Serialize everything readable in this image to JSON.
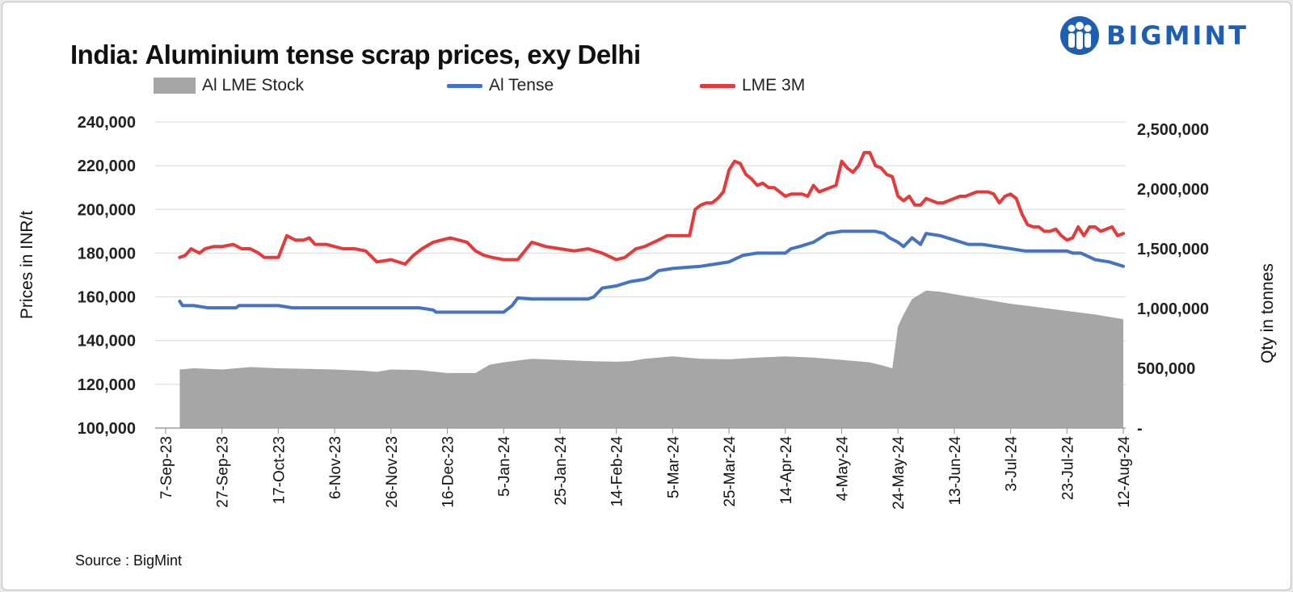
{
  "brand": {
    "name": "BIGMINT",
    "color": "#1e5fb4",
    "icon": "people-logo-icon"
  },
  "source": "Source : BigMint",
  "chart_data": {
    "type": "line",
    "title": "India: Aluminium tense scrap prices, exy Delhi",
    "ylabel": "Prices in INR/t",
    "y2label": "Qty in tonnes",
    "ylim": [
      100000,
      240000
    ],
    "y2lim": [
      0,
      2500000
    ],
    "yticks": [
      "240,000",
      "220,000",
      "200,000",
      "180,000",
      "160,000",
      "140,000",
      "120,000",
      "100,000"
    ],
    "y2ticks": [
      "2,500,000",
      "2,000,000",
      "1,500,000",
      "1,000,000",
      "500,000",
      "-"
    ],
    "categories": [
      "7-Sep-23",
      "27-Sep-23",
      "17-Oct-23",
      "6-Nov-23",
      "26-Nov-23",
      "16-Dec-23",
      "5-Jan-24",
      "25-Jan-24",
      "14-Feb-24",
      "5-Mar-24",
      "25-Mar-24",
      "14-Apr-24",
      "4-May-24",
      "24-May-24",
      "13-Jun-24",
      "3-Jul-24",
      "23-Jul-24",
      "12-Aug-24"
    ],
    "x_range_days": [
      0,
      340
    ],
    "grid": "horizontal",
    "legend_position": "top",
    "series": [
      {
        "name": "Al LME Stock",
        "type": "area",
        "axis": "right",
        "color": "#a6a6a6",
        "x": [
          5,
          10,
          20,
          30,
          40,
          50,
          60,
          70,
          75,
          80,
          90,
          100,
          110,
          115,
          120,
          130,
          140,
          150,
          160,
          165,
          170,
          180,
          190,
          200,
          210,
          220,
          230,
          240,
          250,
          255,
          258,
          260,
          262,
          265,
          270,
          275,
          280,
          290,
          300,
          310,
          320,
          330,
          340
        ],
        "values": [
          490000,
          500000,
          490000,
          510000,
          500000,
          495000,
          490000,
          480000,
          470000,
          490000,
          485000,
          460000,
          460000,
          530000,
          550000,
          580000,
          570000,
          560000,
          555000,
          560000,
          580000,
          600000,
          580000,
          575000,
          590000,
          600000,
          590000,
          570000,
          550000,
          520000,
          500000,
          850000,
          950000,
          1080000,
          1150000,
          1140000,
          1120000,
          1080000,
          1040000,
          1010000,
          980000,
          950000,
          910000
        ]
      },
      {
        "name": "Al Tense",
        "type": "line",
        "axis": "left",
        "color": "#4472c4",
        "x": [
          5,
          6,
          10,
          15,
          20,
          25,
          26,
          30,
          35,
          40,
          45,
          50,
          55,
          60,
          70,
          80,
          90,
          95,
          96,
          100,
          110,
          115,
          120,
          123,
          125,
          130,
          140,
          145,
          150,
          152,
          155,
          160,
          165,
          170,
          172,
          175,
          180,
          185,
          190,
          195,
          200,
          205,
          210,
          215,
          220,
          222,
          225,
          230,
          235,
          240,
          245,
          250,
          252,
          255,
          257,
          260,
          262,
          265,
          268,
          270,
          275,
          280,
          285,
          290,
          295,
          300,
          305,
          310,
          315,
          320,
          322,
          325,
          330,
          335,
          340
        ],
        "values": [
          158000,
          156000,
          156000,
          155000,
          155000,
          155000,
          156000,
          156000,
          156000,
          156000,
          155000,
          155000,
          155000,
          155000,
          155000,
          155000,
          155000,
          154000,
          153000,
          153000,
          153000,
          153000,
          153000,
          156000,
          159500,
          159000,
          159000,
          159000,
          159000,
          160000,
          164000,
          165000,
          167000,
          168000,
          169000,
          172000,
          173000,
          173500,
          174000,
          175000,
          176000,
          179000,
          180000,
          180000,
          180000,
          182000,
          183000,
          185000,
          189000,
          190000,
          190000,
          190000,
          190000,
          189000,
          187000,
          185000,
          183000,
          187000,
          184000,
          189000,
          188000,
          186000,
          184000,
          184000,
          183000,
          182000,
          181000,
          181000,
          181000,
          181000,
          180000,
          180000,
          177000,
          176000,
          174000
        ]
      },
      {
        "name": "LME 3M",
        "type": "line",
        "axis": "left",
        "color": "#e8393a",
        "x": [
          5,
          7,
          9,
          12,
          14,
          17,
          20,
          24,
          27,
          30,
          33,
          35,
          38,
          40,
          43,
          46,
          49,
          51,
          53,
          55,
          57,
          60,
          63,
          67,
          71,
          75,
          80,
          85,
          88,
          91,
          95,
          98,
          101,
          104,
          107,
          110,
          113,
          116,
          120,
          125,
          130,
          135,
          140,
          145,
          150,
          155,
          160,
          163,
          165,
          167,
          170,
          175,
          178,
          180,
          183,
          186,
          188,
          190,
          192,
          194,
          196,
          198,
          200,
          202,
          204,
          206,
          208,
          210,
          212,
          214,
          216,
          218,
          220,
          222,
          224,
          226,
          228,
          230,
          232,
          234,
          236,
          238,
          240,
          242,
          244,
          246,
          248,
          250,
          252,
          254,
          256,
          258,
          260,
          262,
          264,
          266,
          268,
          270,
          272,
          274,
          276,
          278,
          280,
          282,
          284,
          286,
          288,
          290,
          292,
          294,
          296,
          298,
          300,
          302,
          304,
          306,
          308,
          310,
          312,
          314,
          316,
          318,
          320,
          322,
          324,
          326,
          328,
          330,
          332,
          334,
          336,
          338,
          340
        ],
        "values": [
          178000,
          179000,
          182000,
          180000,
          182000,
          183000,
          183000,
          184000,
          182000,
          182000,
          180000,
          178000,
          178000,
          178000,
          188000,
          186000,
          186000,
          187000,
          184000,
          184000,
          184000,
          183000,
          182000,
          182000,
          181000,
          176000,
          177000,
          175000,
          179000,
          182000,
          185000,
          186000,
          187000,
          186000,
          185000,
          181000,
          179000,
          178000,
          177000,
          177000,
          185000,
          183000,
          182000,
          181000,
          182000,
          180000,
          177000,
          178000,
          180000,
          182000,
          183000,
          186000,
          188000,
          188000,
          188000,
          188000,
          200000,
          202000,
          203000,
          203000,
          205000,
          208000,
          218000,
          222000,
          221000,
          216000,
          214000,
          211000,
          212000,
          210000,
          210000,
          208000,
          206000,
          207000,
          207000,
          207000,
          206000,
          211000,
          208000,
          209000,
          210000,
          211000,
          222000,
          219000,
          217000,
          220000,
          226000,
          226000,
          220000,
          219000,
          216000,
          215000,
          206000,
          204000,
          206000,
          202000,
          202000,
          205000,
          204000,
          203000,
          203000,
          204000,
          205000,
          206000,
          206000,
          207000,
          208000,
          208000,
          208000,
          207000,
          203000,
          206000,
          207000,
          205000,
          198000,
          193000,
          192000,
          192000,
          190000,
          190000,
          191000,
          188000,
          186000,
          187000,
          192000,
          188000,
          192000,
          192000,
          190000,
          191000,
          192000,
          188000,
          189000
        ]
      }
    ]
  }
}
